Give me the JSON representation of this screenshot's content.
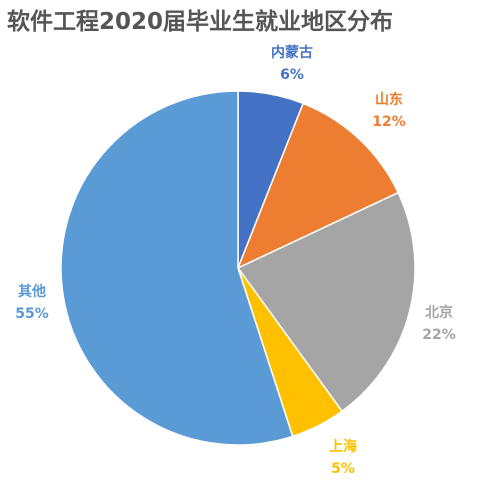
{
  "chart_data": {
    "type": "pie",
    "title": "软件工程2020届毕业生就业地区分布",
    "slices": [
      {
        "label": "内蒙古",
        "value": 6,
        "display": "6%",
        "color": "#4472C4"
      },
      {
        "label": "山东",
        "value": 12,
        "display": "12%",
        "color": "#ED7D31"
      },
      {
        "label": "北京",
        "value": 22,
        "display": "22%",
        "color": "#A5A5A5"
      },
      {
        "label": "上海",
        "value": 5,
        "display": "5%",
        "color": "#FFC000"
      },
      {
        "label": "其他",
        "value": 55,
        "display": "55%",
        "color": "#5B9BD5"
      }
    ],
    "legend": "none",
    "start_angle": "12 o'clock",
    "direction": "clockwise"
  }
}
